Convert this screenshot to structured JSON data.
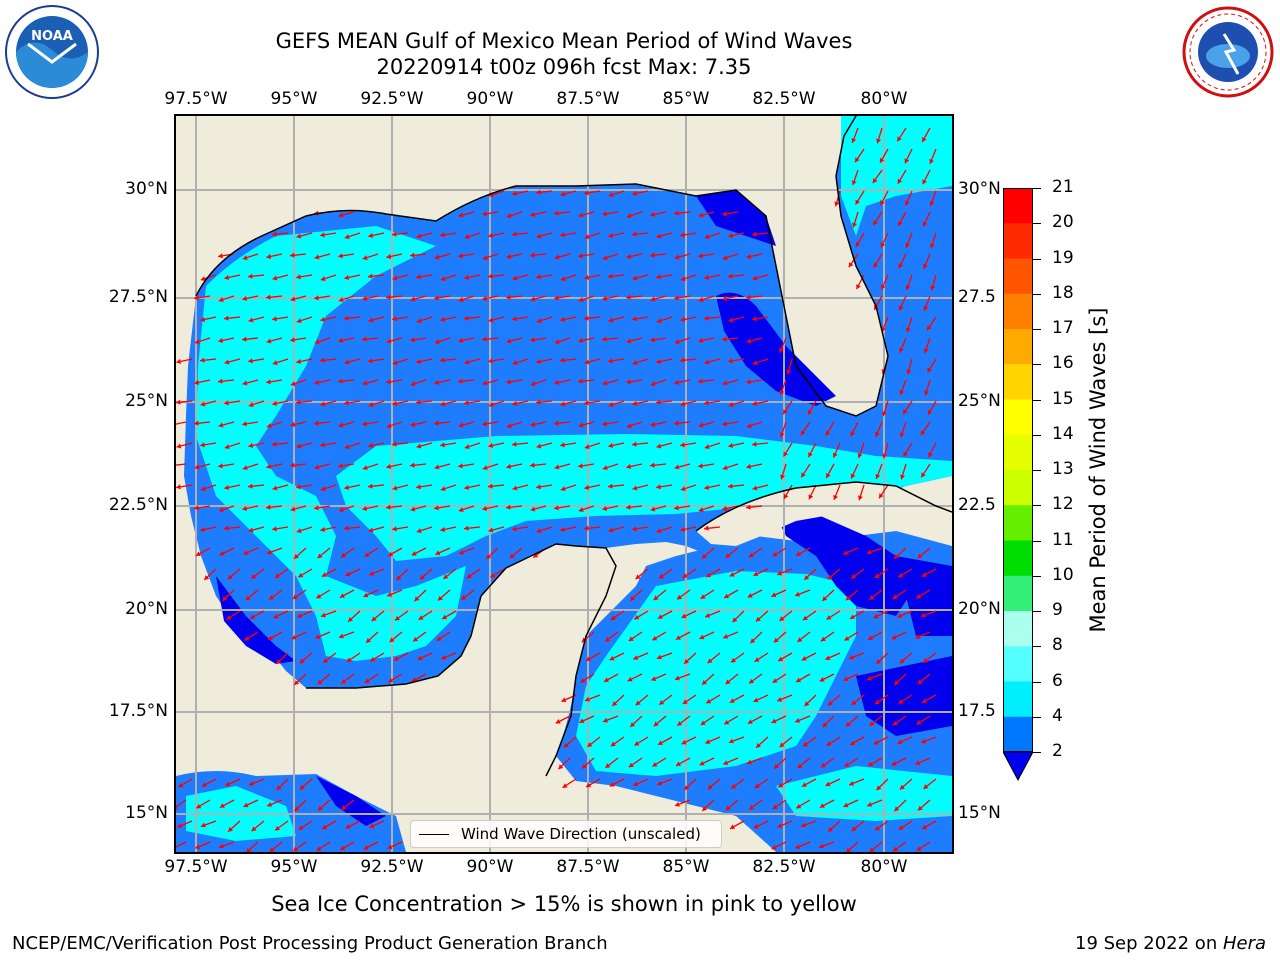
{
  "title": "GEFS MEAN Gulf of Mexico Mean Period of Wind Waves",
  "subtitle": "20220914 t00z 096h fcst   Max: 7.35",
  "lon_ticks": [
    "97.5°W",
    "95°W",
    "92.5°W",
    "90°W",
    "87.5°W",
    "85°W",
    "82.5°W",
    "80°W"
  ],
  "lat_ticks": [
    "30°N",
    "27.5°N",
    "25°N",
    "22.5°N",
    "20°N",
    "17.5°N",
    "15°N"
  ],
  "lat_ticks_right": [
    "30°N",
    "27.5",
    "25°N",
    "22.5",
    "20°N",
    "17.5",
    "15°N"
  ],
  "legend": {
    "label": "Wind Wave Direction (unscaled)"
  },
  "colorbar": {
    "label": "Mean Period of Wind Waves [s]",
    "ticks": [
      "21",
      "20",
      "19",
      "18",
      "17",
      "16",
      "15",
      "14",
      "13",
      "12",
      "11",
      "10",
      "9",
      "8",
      "6",
      "4",
      "2"
    ],
    "colors": [
      "#ff0000",
      "#ff2200",
      "#ff4400",
      "#ff6600",
      "#ff8800",
      "#ffaa00",
      "#ffcc00",
      "#ffee00",
      "#eeff00",
      "#ccff00",
      "#88ee00",
      "#33dd00",
      "#00cc00",
      "#44ee77",
      "#aaffee",
      "#55ffff",
      "#00eeff",
      "#0077ff",
      "#0000ee"
    ]
  },
  "colors": {
    "land": "#efecdc",
    "water_light": "#00ffff",
    "water_mid": "#1e7dff",
    "water_dark": "#0000ee",
    "arrows": "#ff0000"
  },
  "footnote": "Sea Ice Concentration > 15% is shown in pink to yellow",
  "footer_left": "NCEP/EMC/Verification Post Processing Product Generation Branch",
  "footer_right": "19 Sep 2022 on Hera",
  "logos": {
    "left": "NOAA",
    "right": "NATIONAL WEATHER SERVICE"
  }
}
